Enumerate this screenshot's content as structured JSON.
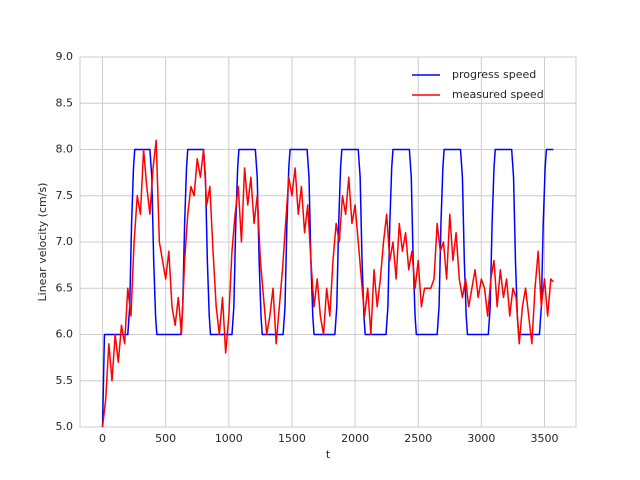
{
  "chart_data": {
    "type": "line",
    "xlabel": "t",
    "ylabel": "Linear velocity (cm/s)",
    "xlim": [
      -178.5,
      3749.5
    ],
    "ylim": [
      5,
      9
    ],
    "xticks": [
      0,
      500,
      1000,
      1500,
      2000,
      2500,
      3000,
      3500
    ],
    "yticks": [
      {
        "value": 5,
        "label": "5.0"
      },
      {
        "value": 5.5,
        "label": "5.5"
      },
      {
        "value": 6,
        "label": "6.0"
      },
      {
        "value": 6.5,
        "label": "6.5"
      },
      {
        "value": 7,
        "label": "7.0"
      },
      {
        "value": 7.5,
        "label": "7.5"
      },
      {
        "value": 8,
        "label": "8.0"
      },
      {
        "value": 8.5,
        "label": "8.5"
      },
      {
        "value": 9,
        "label": "9.0"
      }
    ],
    "grid": true,
    "legend": "upper right",
    "series": [
      {
        "name": "progress speed",
        "color": "#0000ff",
        "x": [
          0,
          15,
          200,
          215,
          230,
          245,
          255,
          375,
          390,
          405,
          420,
          430,
          620,
          635,
          650,
          665,
          675,
          800,
          815,
          830,
          845,
          855,
          1025,
          1040,
          1055,
          1070,
          1080,
          1210,
          1225,
          1240,
          1255,
          1265,
          1430,
          1445,
          1460,
          1475,
          1485,
          1620,
          1635,
          1650,
          1665,
          1675,
          1840,
          1855,
          1870,
          1885,
          1895,
          2025,
          2040,
          2055,
          2070,
          2080,
          2245,
          2260,
          2275,
          2290,
          2300,
          2430,
          2445,
          2460,
          2475,
          2485,
          2650,
          2665,
          2680,
          2695,
          2705,
          2835,
          2850,
          2865,
          2880,
          2890,
          3055,
          3070,
          3085,
          3100,
          3110,
          3240,
          3255,
          3270,
          3285,
          3295,
          3460,
          3475,
          3490,
          3505,
          3515,
          3571
        ],
        "values": [
          5,
          6,
          6,
          6.3,
          7.2,
          7.8,
          8,
          8,
          7.7,
          6.8,
          6.2,
          6,
          6,
          6.3,
          7.2,
          7.8,
          8,
          8,
          7.7,
          6.8,
          6.2,
          6,
          6,
          6.3,
          7.2,
          7.8,
          8,
          8,
          7.7,
          6.8,
          6.2,
          6,
          6,
          6.3,
          7.2,
          7.8,
          8,
          8,
          7.7,
          6.8,
          6.2,
          6,
          6,
          6.3,
          7.2,
          7.8,
          8,
          8,
          7.7,
          6.8,
          6.2,
          6,
          6,
          6.3,
          7.2,
          7.8,
          8,
          8,
          7.7,
          6.8,
          6.2,
          6,
          6,
          6.3,
          7.2,
          7.8,
          8,
          8,
          7.7,
          6.8,
          6.2,
          6,
          6,
          6.3,
          7.2,
          7.8,
          8,
          8,
          7.7,
          6.8,
          6.2,
          6,
          6,
          6.3,
          7.2,
          7.8,
          8,
          8
        ]
      },
      {
        "name": "measured speed",
        "color": "#ff0000",
        "x": [
          0,
          25,
          50,
          75,
          100,
          125,
          150,
          175,
          200,
          225,
          250,
          275,
          300,
          325,
          350,
          375,
          400,
          425,
          450,
          475,
          500,
          525,
          550,
          575,
          600,
          625,
          650,
          675,
          700,
          725,
          750,
          775,
          800,
          825,
          850,
          875,
          900,
          925,
          950,
          975,
          1000,
          1025,
          1050,
          1075,
          1100,
          1125,
          1150,
          1175,
          1200,
          1225,
          1250,
          1275,
          1300,
          1325,
          1350,
          1375,
          1400,
          1425,
          1450,
          1475,
          1500,
          1525,
          1550,
          1575,
          1600,
          1625,
          1650,
          1675,
          1700,
          1725,
          1750,
          1775,
          1800,
          1825,
          1850,
          1875,
          1900,
          1925,
          1950,
          1975,
          2000,
          2025,
          2050,
          2075,
          2100,
          2125,
          2150,
          2175,
          2200,
          2225,
          2250,
          2275,
          2300,
          2325,
          2350,
          2375,
          2400,
          2425,
          2450,
          2475,
          2500,
          2525,
          2550,
          2575,
          2600,
          2625,
          2650,
          2675,
          2700,
          2725,
          2750,
          2775,
          2800,
          2825,
          2850,
          2875,
          2900,
          2925,
          2950,
          2975,
          3000,
          3025,
          3050,
          3075,
          3100,
          3125,
          3150,
          3175,
          3200,
          3225,
          3250,
          3275,
          3300,
          3325,
          3350,
          3375,
          3400,
          3425,
          3450,
          3475,
          3500,
          3525,
          3550,
          3570
        ],
        "values": [
          5.0,
          5.3,
          5.9,
          5.5,
          6.0,
          5.7,
          6.1,
          5.9,
          6.5,
          6.2,
          7.0,
          7.5,
          7.3,
          8.0,
          7.6,
          7.3,
          7.8,
          8.1,
          7.0,
          6.8,
          6.6,
          6.9,
          6.3,
          6.1,
          6.4,
          6.0,
          6.8,
          7.3,
          7.6,
          7.5,
          7.9,
          7.7,
          8.0,
          7.4,
          7.6,
          6.9,
          6.3,
          6.0,
          6.4,
          5.8,
          6.2,
          6.9,
          7.3,
          7.6,
          7.0,
          7.8,
          7.4,
          7.7,
          7.2,
          7.5,
          6.8,
          6.4,
          6.0,
          6.2,
          6.5,
          5.9,
          6.3,
          6.7,
          7.2,
          7.7,
          7.5,
          7.8,
          7.3,
          7.6,
          7.1,
          7.4,
          6.8,
          6.3,
          6.6,
          6.2,
          6.0,
          6.5,
          6.2,
          6.8,
          7.2,
          7.0,
          7.5,
          7.3,
          7.7,
          7.2,
          7.4,
          7.0,
          6.6,
          6.2,
          6.5,
          6.0,
          6.7,
          6.3,
          6.6,
          7.0,
          7.3,
          6.8,
          7.0,
          6.6,
          7.2,
          6.9,
          7.1,
          6.7,
          6.9,
          6.5,
          6.8,
          6.3,
          6.5,
          6.5,
          6.5,
          6.6,
          7.2,
          6.9,
          7.0,
          6.6,
          7.3,
          6.8,
          7.1,
          6.6,
          6.4,
          6.6,
          6.3,
          6.5,
          6.7,
          6.4,
          6.6,
          6.5,
          6.2,
          6.6,
          6.8,
          6.3,
          6.7,
          6.4,
          6.6,
          6.2,
          6.5,
          6.4,
          5.9,
          6.3,
          6.5,
          6.2,
          5.9,
          6.5,
          6.9,
          6.3,
          6.6,
          6.2,
          6.6,
          6.57
        ]
      }
    ]
  }
}
